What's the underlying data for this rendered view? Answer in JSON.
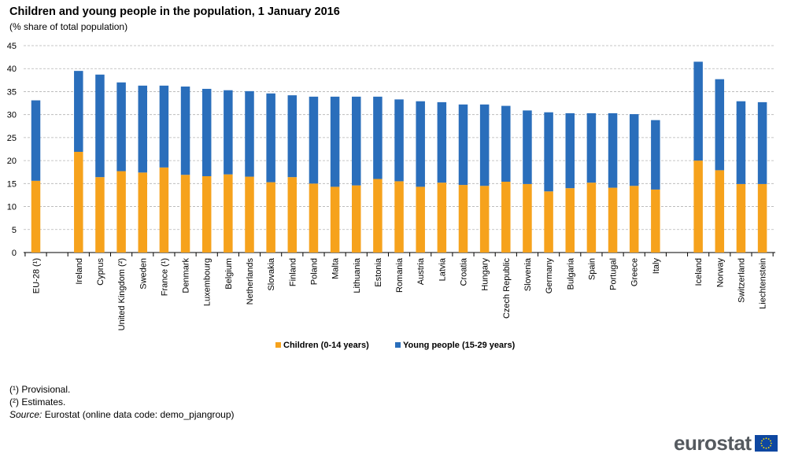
{
  "title": "Children and young people in the population, 1 January 2016",
  "subtitle": "(% share of total population)",
  "notes": {
    "provisional": "(¹) Provisional.",
    "estimates": "(²) Estimates.",
    "source_label": "Source:",
    "source_text": "Eurostat (online data code: demo_pjangroup)"
  },
  "logo_text": "eurostat",
  "colors": {
    "children": "#f6a21c",
    "young": "#2a6ebb",
    "grid": "#b3b3b3"
  },
  "chart_data": {
    "type": "bar",
    "stacked": true,
    "title": "Children and young people in the population, 1 January 2016",
    "subtitle": "(% share of total population)",
    "xlabel": "",
    "ylabel": "",
    "ylim": [
      0,
      45
    ],
    "yticks": [
      0,
      5,
      10,
      15,
      20,
      25,
      30,
      35,
      40,
      45
    ],
    "grid": true,
    "legend_position": "bottom-center",
    "categories": [
      "EU-28 (¹)",
      "Ireland",
      "Cyprus",
      "United Kingdom (²)",
      "Sweden",
      "France (¹)",
      "Denmark",
      "Luxembourg",
      "Belgium",
      "Netherlands",
      "Slovakia",
      "Finland",
      "Poland",
      "Malta",
      "Lithuania",
      "Estonia",
      "Romania",
      "Austria",
      "Latvia",
      "Croatia",
      "Hungary",
      "Czech Republic",
      "Slovenia",
      "Germany",
      "Bulgaria",
      "Spain",
      "Portugal",
      "Greece",
      "Italy",
      "Iceland",
      "Norway",
      "Switzerland",
      "Liechtenstein"
    ],
    "series": [
      {
        "name": "Children (0-14 years)",
        "values": [
          15.6,
          21.9,
          16.4,
          17.7,
          17.4,
          18.5,
          16.9,
          16.6,
          17.0,
          16.5,
          15.3,
          16.4,
          15.0,
          14.3,
          14.6,
          16.0,
          15.5,
          14.3,
          15.2,
          14.7,
          14.5,
          15.4,
          14.9,
          13.3,
          14.0,
          15.2,
          14.1,
          14.5,
          13.7,
          20.0,
          17.9,
          14.9,
          14.9
        ]
      },
      {
        "name": "Young people (15-29 years)",
        "values": [
          17.5,
          17.6,
          22.3,
          19.3,
          18.9,
          17.8,
          19.2,
          19.0,
          18.3,
          18.6,
          19.3,
          17.8,
          18.9,
          19.6,
          19.3,
          17.9,
          17.8,
          18.6,
          17.5,
          17.5,
          17.7,
          16.5,
          16.0,
          17.2,
          16.3,
          15.1,
          16.2,
          15.6,
          15.1,
          21.5,
          19.8,
          18.0,
          17.8
        ]
      }
    ]
  }
}
